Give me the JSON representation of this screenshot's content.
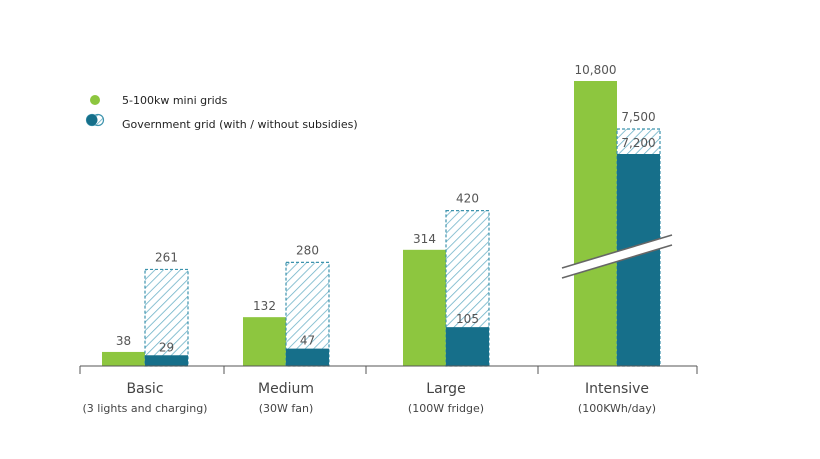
{
  "chart_data": {
    "type": "bar",
    "title": "",
    "xlabel": "",
    "ylabel": "",
    "categories": [
      "Basic",
      "Medium",
      "Large",
      "Intensive"
    ],
    "category_sublabels": [
      "(3 lights and charging)",
      "(30W fan)",
      "(100W fridge)",
      "(100KWh/day)"
    ],
    "series": [
      {
        "name": "5-100kw mini grids",
        "values": [
          38,
          132,
          314,
          10800
        ],
        "labels": [
          "38",
          "132",
          "314",
          "10,800"
        ],
        "color": "#8dc63f"
      },
      {
        "name": "Government grid (with / without subsidies)",
        "with_subsidies": [
          29,
          47,
          105,
          7200
        ],
        "with_labels": [
          "29",
          "47",
          "105",
          "7,200"
        ],
        "without_subsidies": [
          261,
          280,
          420,
          7500
        ],
        "without_labels": [
          "261",
          "280",
          "420",
          "7,500"
        ],
        "color": "#166f8a",
        "hatch_color": "#5aaac2"
      }
    ],
    "axis_break": {
      "category": "Intensive"
    },
    "ylim": [
      0,
      420
    ],
    "grid": false,
    "legend_position": "top-left"
  }
}
